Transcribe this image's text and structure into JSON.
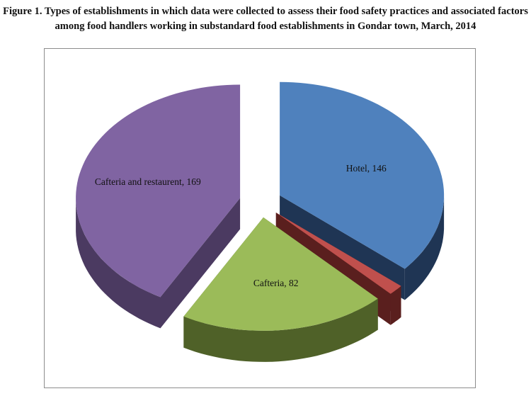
{
  "caption": {
    "line1": "Figure 1. Types of establishments in which data were collected to assess their food safety practices and associated factors",
    "line2": "among food handlers working in substandard food establishments in Gondar town, March, 2014"
  },
  "chart_data": {
    "type": "pie",
    "style": "3d-exploded",
    "title": "",
    "legend": "none",
    "slices": [
      {
        "label": "Hotel",
        "value": 146,
        "data_label": "Hotel, 146",
        "top_color": "#4f81bd",
        "side_color": "#1f3554"
      },
      {
        "label": "",
        "value": 6,
        "data_label": "",
        "top_color": "#c0504d",
        "side_color": "#5a1f1e"
      },
      {
        "label": "Cafteria",
        "value": 82,
        "data_label": "Cafteria, 82",
        "top_color": "#9bbb59",
        "side_color": "#4f6128"
      },
      {
        "label": "Cafteria and restaurent",
        "value": 169,
        "data_label": "Cafteria and restaurent, 169",
        "top_color": "#8064a2",
        "side_color": "#4b3a61"
      }
    ]
  }
}
